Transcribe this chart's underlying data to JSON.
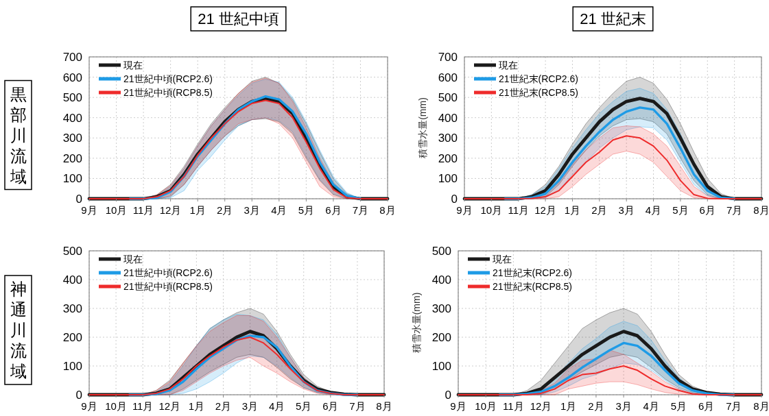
{
  "chart_data": [
    {
      "type": "line",
      "title": "21 世紀中頃",
      "annotations": [
        "黒部川流域"
      ],
      "grid": true,
      "legend": "top left",
      "categories": [
        "9月",
        null,
        "10月",
        null,
        "11月",
        null,
        "12月",
        null,
        "1月",
        null,
        "2月",
        null,
        "3月",
        null,
        "4月",
        null,
        "5月",
        null,
        "6月",
        null,
        "7月",
        null,
        "8月"
      ],
      "ylim": [
        0,
        700
      ],
      "yticks": [
        0,
        100,
        200,
        300,
        400,
        500,
        600,
        700
      ],
      "series": [
        {
          "name": "現在",
          "color": "#1a1a1a",
          "values": [
            0,
            0,
            0,
            0,
            0,
            10,
            40,
            120,
            220,
            300,
            380,
            440,
            480,
            495,
            480,
            420,
            300,
            170,
            60,
            10,
            0,
            0,
            0
          ],
          "upper": [
            0,
            0,
            0,
            0,
            0,
            20,
            70,
            160,
            270,
            370,
            450,
            520,
            580,
            600,
            570,
            490,
            370,
            230,
            100,
            25,
            0,
            0,
            0
          ],
          "lower": [
            0,
            0,
            0,
            0,
            0,
            0,
            10,
            70,
            160,
            240,
            310,
            360,
            390,
            395,
            380,
            320,
            200,
            90,
            20,
            0,
            0,
            0,
            0
          ]
        },
        {
          "name": "21世紀中頃(RCP2.6)",
          "color": "#1e9be6",
          "values": [
            null,
            null,
            null,
            0,
            0,
            5,
            35,
            110,
            210,
            290,
            370,
            440,
            480,
            505,
            490,
            430,
            320,
            180,
            70,
            15,
            0,
            null,
            null
          ],
          "upper": [
            0,
            0,
            0,
            0,
            0,
            15,
            60,
            150,
            260,
            360,
            440,
            510,
            570,
            590,
            575,
            500,
            380,
            240,
            110,
            30,
            0,
            0,
            0
          ],
          "lower": [
            0,
            0,
            0,
            0,
            0,
            0,
            5,
            40,
            140,
            210,
            290,
            360,
            390,
            400,
            385,
            330,
            210,
            95,
            25,
            0,
            0,
            0,
            0
          ]
        },
        {
          "name": "21世紀中頃(RCP8.5)",
          "color": "#ee2b2b",
          "values": [
            0,
            0,
            0,
            0,
            0,
            10,
            40,
            110,
            215,
            300,
            370,
            430,
            470,
            485,
            470,
            400,
            280,
            150,
            45,
            5,
            0,
            0,
            0
          ],
          "upper": [
            0,
            0,
            0,
            0,
            0,
            20,
            65,
            150,
            260,
            360,
            440,
            520,
            575,
            595,
            570,
            480,
            350,
            200,
            80,
            15,
            0,
            0,
            0
          ],
          "lower": [
            0,
            0,
            0,
            0,
            0,
            0,
            15,
            70,
            160,
            240,
            310,
            370,
            390,
            400,
            370,
            300,
            180,
            60,
            10,
            0,
            0,
            0,
            0
          ]
        }
      ]
    },
    {
      "type": "line",
      "title": "21 世紀末",
      "ylabel": "積雪水量(mm)",
      "grid": true,
      "legend": "top left",
      "categories": [
        "9月",
        null,
        "10月",
        null,
        "11月",
        null,
        "12月",
        null,
        "1月",
        null,
        "2月",
        null,
        "3月",
        null,
        "4月",
        null,
        "5月",
        null,
        "6月",
        null,
        "7月",
        null,
        "8月"
      ],
      "ylim": [
        0,
        700
      ],
      "yticks": [
        0,
        100,
        200,
        300,
        400,
        500,
        600,
        700
      ],
      "series": [
        {
          "name": "現在",
          "color": "#1a1a1a",
          "values": [
            0,
            0,
            0,
            0,
            0,
            10,
            40,
            120,
            220,
            300,
            380,
            440,
            480,
            495,
            480,
            420,
            300,
            170,
            60,
            10,
            0,
            0,
            0
          ],
          "upper": [
            0,
            0,
            0,
            0,
            0,
            20,
            70,
            160,
            270,
            370,
            450,
            520,
            580,
            600,
            570,
            490,
            370,
            230,
            100,
            25,
            0,
            0,
            0
          ],
          "lower": [
            0,
            0,
            0,
            0,
            0,
            0,
            10,
            70,
            160,
            240,
            310,
            360,
            390,
            395,
            380,
            320,
            200,
            90,
            20,
            0,
            0,
            0,
            0
          ]
        },
        {
          "name": "21世紀末(RCP2.6)",
          "color": "#1e9be6",
          "values": [
            null,
            null,
            null,
            0,
            0,
            5,
            25,
            90,
            180,
            260,
            330,
            390,
            430,
            450,
            440,
            370,
            250,
            120,
            40,
            5,
            0,
            null,
            null
          ],
          "upper": [
            0,
            0,
            0,
            0,
            0,
            20,
            60,
            150,
            250,
            340,
            420,
            480,
            530,
            545,
            520,
            440,
            320,
            180,
            70,
            15,
            0,
            0,
            0
          ],
          "lower": [
            0,
            0,
            0,
            0,
            0,
            0,
            5,
            40,
            120,
            180,
            250,
            300,
            340,
            355,
            350,
            290,
            180,
            70,
            15,
            0,
            0,
            0,
            0
          ]
        },
        {
          "name": "21世紀末(RCP8.5)",
          "color": "#ee2b2b",
          "values": [
            0,
            0,
            0,
            0,
            0,
            2,
            10,
            40,
            110,
            180,
            230,
            290,
            310,
            300,
            260,
            190,
            90,
            20,
            2,
            0,
            0,
            0,
            0
          ],
          "upper": [
            0,
            0,
            0,
            0,
            0,
            5,
            25,
            80,
            170,
            240,
            300,
            350,
            360,
            355,
            320,
            260,
            160,
            60,
            15,
            0,
            0,
            0,
            0
          ],
          "lower": [
            0,
            0,
            0,
            0,
            0,
            0,
            0,
            10,
            60,
            120,
            170,
            220,
            235,
            220,
            180,
            110,
            40,
            5,
            0,
            0,
            0,
            0,
            0
          ]
        }
      ]
    },
    {
      "type": "line",
      "annotations": [
        "神通川流域"
      ],
      "grid": true,
      "legend": "top left",
      "categories": [
        "9月",
        null,
        "10月",
        null,
        "11月",
        null,
        "12月",
        null,
        "1月",
        null,
        "2月",
        null,
        "3月",
        null,
        "4月",
        null,
        "5月",
        null,
        "6月",
        null,
        "7月",
        null,
        "8月"
      ],
      "ylim": [
        0,
        500
      ],
      "yticks": [
        0,
        100,
        200,
        300,
        400,
        500
      ],
      "series": [
        {
          "name": "現在",
          "color": "#1a1a1a",
          "values": [
            0,
            0,
            0,
            0,
            0,
            5,
            20,
            60,
            100,
            140,
            170,
            200,
            220,
            205,
            160,
            100,
            50,
            20,
            8,
            2,
            0,
            0,
            0
          ],
          "upper": [
            0,
            0,
            0,
            0,
            0,
            15,
            50,
            110,
            170,
            230,
            260,
            285,
            300,
            280,
            220,
            140,
            70,
            30,
            10,
            2,
            0,
            0,
            0
          ],
          "lower": [
            0,
            0,
            0,
            0,
            0,
            0,
            0,
            20,
            50,
            80,
            105,
            130,
            140,
            130,
            95,
            55,
            25,
            8,
            2,
            0,
            0,
            0,
            0
          ]
        },
        {
          "name": "21世紀中頃(RCP2.6)",
          "color": "#1e9be6",
          "values": [
            null,
            null,
            null,
            0,
            0,
            3,
            15,
            45,
            90,
            130,
            160,
            190,
            205,
            200,
            165,
            100,
            45,
            15,
            5,
            0,
            0,
            null,
            null
          ],
          "upper": [
            0,
            0,
            0,
            0,
            0,
            10,
            40,
            100,
            170,
            230,
            260,
            280,
            275,
            260,
            210,
            130,
            60,
            20,
            8,
            0,
            0,
            0,
            0
          ],
          "lower": [
            0,
            0,
            0,
            0,
            0,
            0,
            0,
            5,
            20,
            45,
            75,
            110,
            135,
            130,
            100,
            60,
            25,
            8,
            2,
            0,
            0,
            0,
            0
          ]
        },
        {
          "name": "21世紀中頃(RCP8.5)",
          "color": "#ee2b2b",
          "values": [
            0,
            0,
            0,
            0,
            0,
            5,
            20,
            55,
            100,
            135,
            165,
            190,
            200,
            180,
            140,
            90,
            45,
            15,
            5,
            0,
            0,
            0,
            0
          ],
          "upper": [
            0,
            0,
            0,
            0,
            0,
            15,
            45,
            110,
            170,
            220,
            250,
            275,
            275,
            255,
            200,
            130,
            60,
            20,
            8,
            0,
            0,
            0,
            0
          ],
          "lower": [
            0,
            0,
            0,
            0,
            0,
            0,
            0,
            15,
            45,
            75,
            100,
            120,
            130,
            100,
            75,
            45,
            20,
            5,
            0,
            0,
            0,
            0,
            0
          ]
        }
      ]
    },
    {
      "type": "line",
      "ylabel": "積雪水量(mm)",
      "grid": true,
      "legend": "top left",
      "categories": [
        "9月",
        null,
        "10月",
        null,
        "11月",
        null,
        "12月",
        null,
        "1月",
        null,
        "2月",
        null,
        "3月",
        null,
        "4月",
        null,
        "5月",
        null,
        "6月",
        null,
        "7月",
        null,
        "8月"
      ],
      "ylim": [
        0,
        500
      ],
      "yticks": [
        0,
        100,
        200,
        300,
        400,
        500
      ],
      "series": [
        {
          "name": "現在",
          "color": "#1a1a1a",
          "values": [
            0,
            0,
            0,
            0,
            0,
            5,
            20,
            60,
            100,
            140,
            170,
            200,
            220,
            205,
            160,
            100,
            50,
            20,
            8,
            2,
            0,
            0,
            0
          ],
          "upper": [
            0,
            0,
            0,
            0,
            0,
            15,
            50,
            110,
            170,
            230,
            260,
            285,
            300,
            280,
            220,
            140,
            70,
            30,
            10,
            2,
            0,
            0,
            0
          ],
          "lower": [
            0,
            0,
            0,
            0,
            0,
            0,
            0,
            20,
            50,
            80,
            105,
            130,
            140,
            130,
            95,
            55,
            25,
            8,
            2,
            0,
            0,
            0,
            0
          ]
        },
        {
          "name": "21世紀末(RCP2.6)",
          "color": "#1e9be6",
          "values": [
            null,
            null,
            null,
            0,
            0,
            3,
            10,
            30,
            60,
            95,
            125,
            155,
            180,
            170,
            135,
            85,
            40,
            15,
            5,
            0,
            0,
            null,
            null
          ],
          "upper": [
            0,
            0,
            0,
            0,
            0,
            8,
            20,
            60,
            110,
            160,
            195,
            235,
            255,
            240,
            190,
            120,
            60,
            20,
            8,
            0,
            0,
            0,
            0
          ],
          "lower": [
            0,
            0,
            0,
            0,
            0,
            0,
            0,
            10,
            30,
            55,
            70,
            90,
            110,
            105,
            85,
            50,
            20,
            5,
            0,
            0,
            0,
            0,
            0
          ]
        },
        {
          "name": "21世紀末(RCP8.5)",
          "color": "#ee2b2b",
          "values": [
            0,
            0,
            0,
            0,
            0,
            0,
            5,
            20,
            50,
            70,
            75,
            90,
            100,
            85,
            55,
            30,
            15,
            3,
            0,
            0,
            0,
            0,
            0
          ],
          "upper": [
            0,
            0,
            0,
            0,
            0,
            3,
            15,
            40,
            90,
            120,
            125,
            155,
            140,
            110,
            80,
            45,
            20,
            5,
            0,
            0,
            0,
            0,
            0
          ],
          "lower": [
            0,
            0,
            0,
            0,
            0,
            0,
            0,
            0,
            20,
            30,
            40,
            45,
            45,
            35,
            20,
            8,
            2,
            0,
            0,
            0,
            0,
            0,
            0
          ]
        }
      ]
    }
  ]
}
